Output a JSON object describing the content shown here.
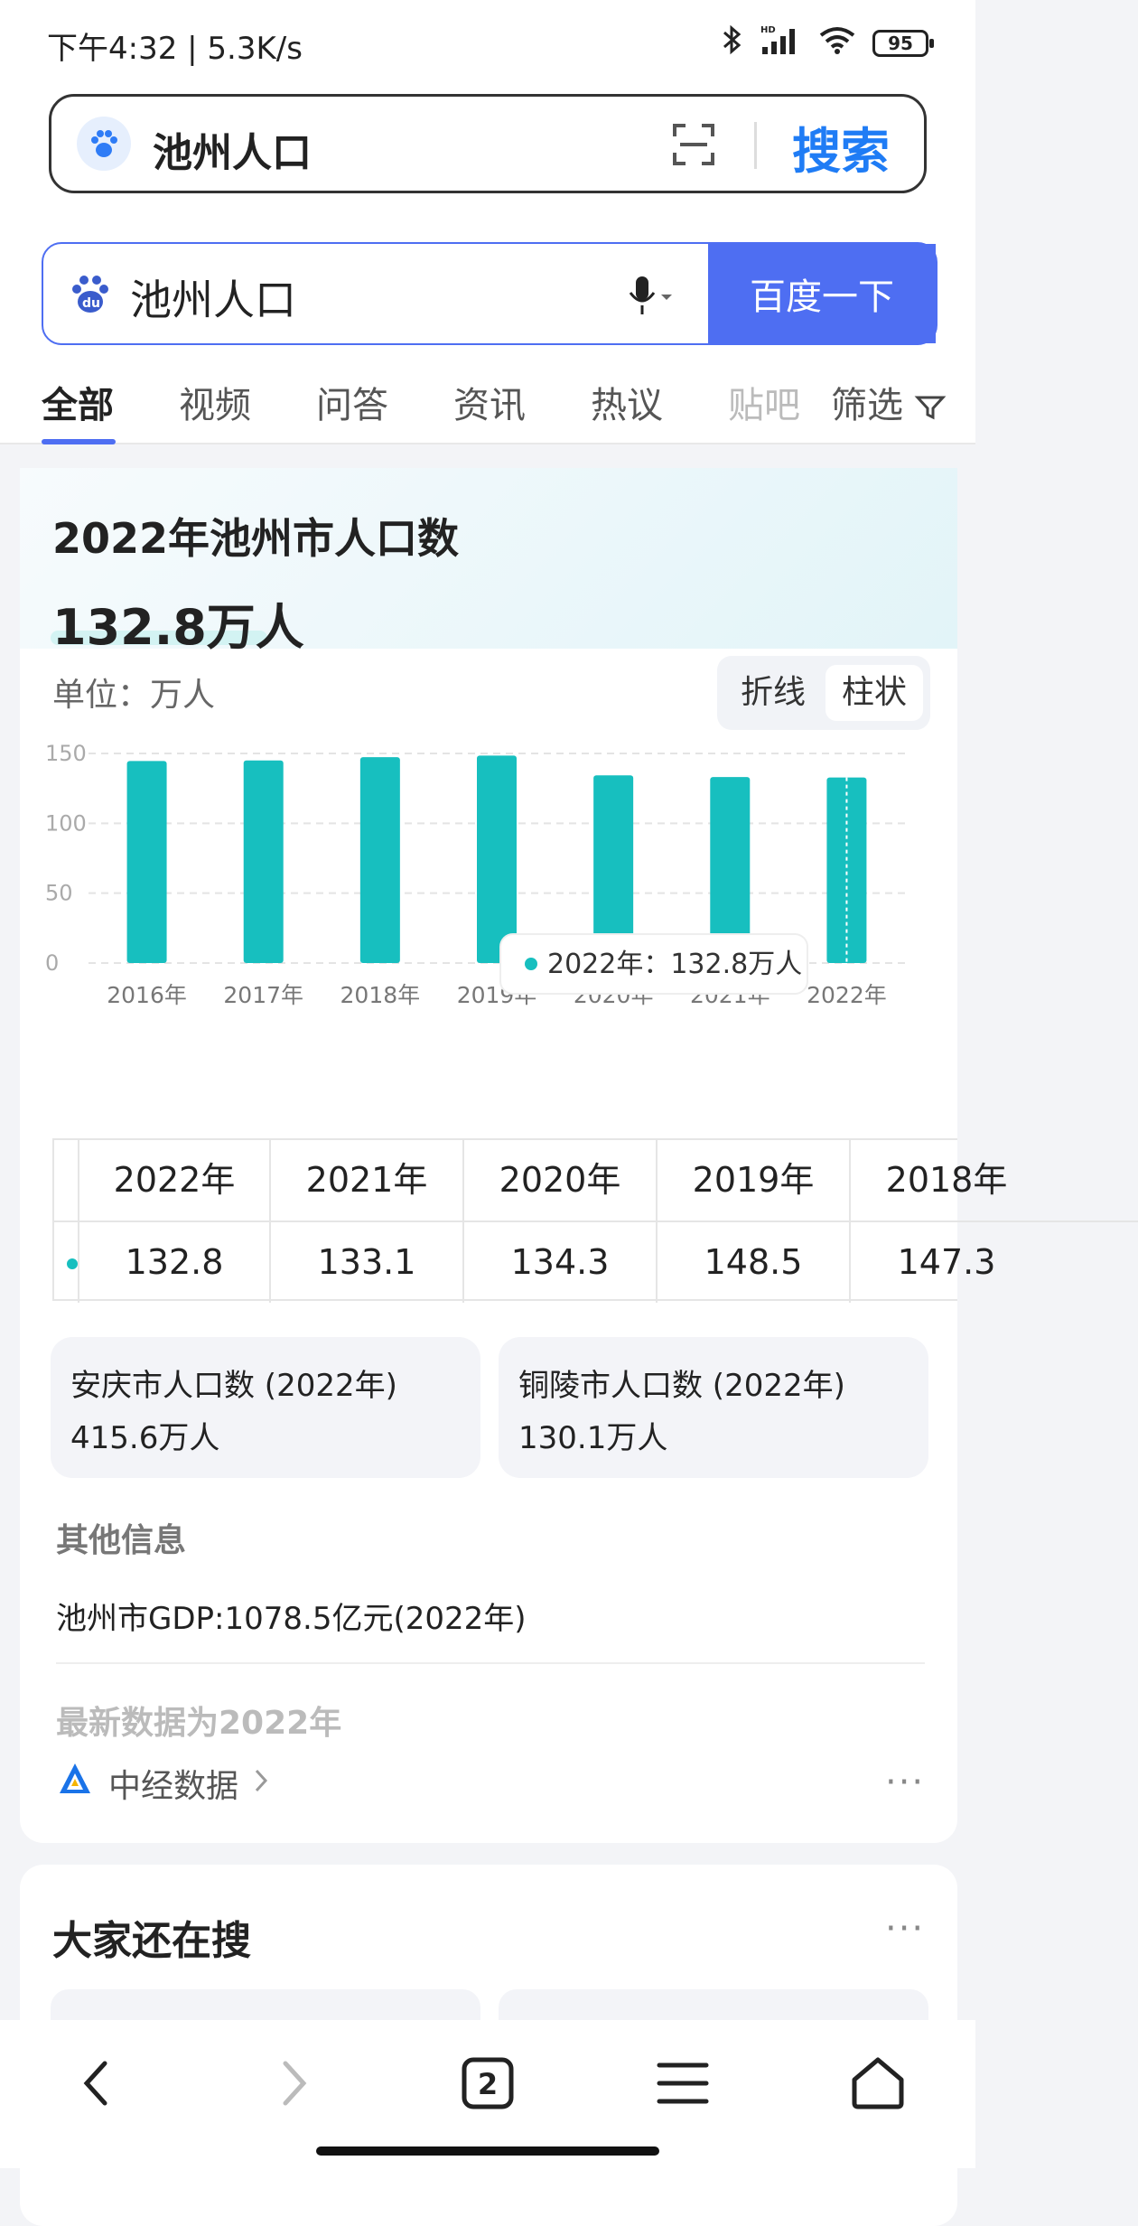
{
  "status_bar": {
    "time": "下午4:32 | 5.3K/s",
    "battery": "95",
    "hd": "HD"
  },
  "top_search": {
    "query": "池州人口",
    "button": "搜索"
  },
  "search": {
    "query": "池州人口",
    "button": "百度一下"
  },
  "tabs": [
    {
      "label": "全部"
    },
    {
      "label": "视频"
    },
    {
      "label": "问答"
    },
    {
      "label": "资讯"
    },
    {
      "label": "热议"
    },
    {
      "label": "贴吧"
    },
    {
      "label": "筛选"
    }
  ],
  "card": {
    "title": "2022年池州市人口数",
    "value": "132.8万人",
    "unit": "单位：万人",
    "toggle": {
      "line": "折线",
      "bar": "柱状"
    },
    "tooltip": "2022年：132.8万人"
  },
  "chart_data": {
    "type": "bar",
    "categories": [
      "2016年",
      "2017年",
      "2018年",
      "2019年",
      "2020年",
      "2021年",
      "2022年"
    ],
    "values": [
      144.6,
      145.0,
      147.3,
      148.5,
      134.3,
      133.1,
      132.8
    ],
    "ylim": [
      0,
      150
    ],
    "yticks": [
      "0",
      "50",
      "100",
      "150"
    ],
    "grid": true,
    "color": "#17bfbf"
  },
  "table": {
    "headers": [
      "2022年",
      "2021年",
      "2020年",
      "2019年",
      "2018年"
    ],
    "values": [
      "132.8",
      "133.1",
      "134.3",
      "148.5",
      "147.3"
    ]
  },
  "related": [
    {
      "title": "安庆市人口数 (2022年)",
      "value": "415.6万人"
    },
    {
      "title": "铜陵市人口数 (2022年)",
      "value": "130.1万人"
    }
  ],
  "other": {
    "heading": "其他信息",
    "gdp": "池州市GDP:1078.5亿元(2022年)",
    "latest": "最新数据为2022年",
    "source": "中经数据"
  },
  "also_search": {
    "title": "大家还在搜"
  },
  "nav": {
    "tab_count": "2"
  }
}
